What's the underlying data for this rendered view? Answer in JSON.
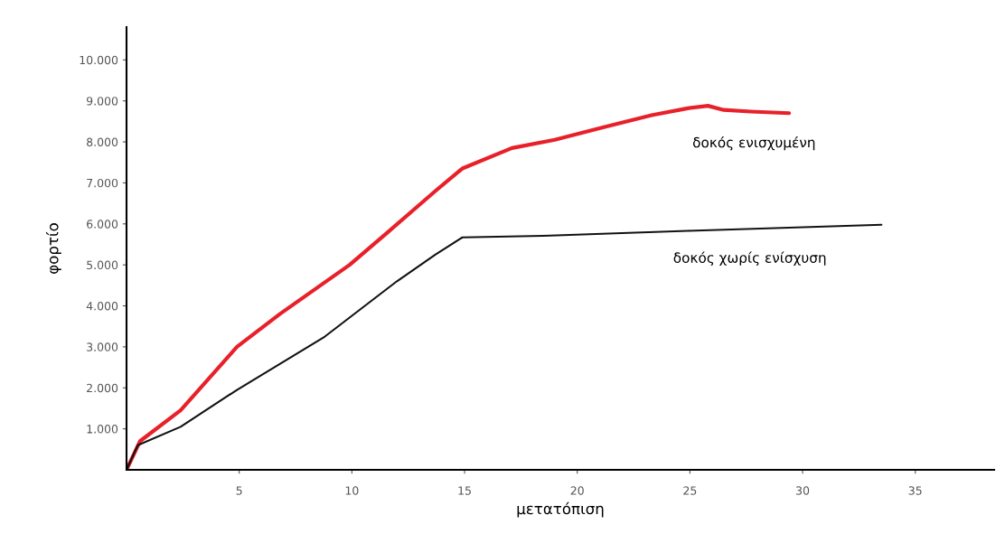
{
  "chart_data": {
    "type": "line",
    "xlabel": "μετατόπιση",
    "ylabel": "φορτίο",
    "xlim": [
      0,
      38.5
    ],
    "ylim": [
      0,
      10800
    ],
    "xticks": [
      5,
      10,
      15,
      20,
      25,
      30,
      35
    ],
    "yticks": [
      {
        "value": 1000,
        "label": "1.000"
      },
      {
        "value": 2000,
        "label": "2.000"
      },
      {
        "value": 3000,
        "label": "3.000"
      },
      {
        "value": 4000,
        "label": "4.000"
      },
      {
        "value": 5000,
        "label": "5.000"
      },
      {
        "value": 6000,
        "label": "6.000"
      },
      {
        "value": 7000,
        "label": "7.000"
      },
      {
        "value": 8000,
        "label": "8.000"
      },
      {
        "value": 9000,
        "label": "9.000"
      },
      {
        "value": 10000,
        "label": "10.000"
      }
    ],
    "grid": false,
    "legend": false,
    "marker": "none",
    "line_style": "solid",
    "series": [
      {
        "name": "δοκός ενισχυμένη",
        "color": "#e8202a",
        "x": [
          0,
          0.6,
          2.4,
          4.9,
          6.8,
          9.9,
          11.6,
          13.7,
          14.9,
          17.1,
          19,
          21.1,
          23.3,
          24.9,
          25.8,
          26.5,
          27.7,
          29.4
        ],
        "values": [
          0,
          700,
          1450,
          3000,
          3800,
          5000,
          5800,
          6800,
          7350,
          7850,
          8050,
          8350,
          8650,
          8820,
          8880,
          8780,
          8740,
          8700
        ]
      },
      {
        "name": "δοκός χωρίς ενίσχυση",
        "color": "#111111",
        "x": [
          0,
          0.5,
          2.4,
          4.9,
          8.8,
          12,
          13.7,
          14.9,
          18.5,
          24.9,
          33.5
        ],
        "values": [
          0,
          600,
          1050,
          1950,
          3250,
          4600,
          5250,
          5670,
          5710,
          5830,
          5980
        ]
      }
    ]
  }
}
